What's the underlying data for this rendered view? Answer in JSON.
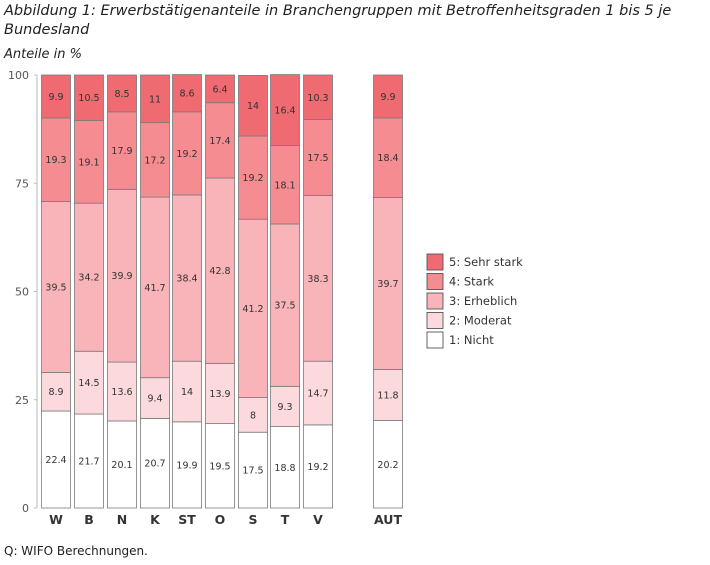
{
  "title": "Abbildung 1: Erwerbstätigenanteile in Branchengruppen mit Betroffenheitsgraden 1 bis 5 je Bundesland",
  "source": "Q: WIFO Berechnungen.",
  "chart_data": {
    "type": "bar",
    "stacked": true,
    "ylabel": "Anteile in %",
    "ylim": [
      0,
      100
    ],
    "yticks": [
      0,
      25,
      50,
      75,
      100
    ],
    "categories": [
      "W",
      "B",
      "N",
      "K",
      "ST",
      "O",
      "S",
      "T",
      "V",
      "AUT"
    ],
    "series": [
      {
        "name": "1: Nicht",
        "color": "#ffffff",
        "values": [
          22.4,
          21.7,
          20.1,
          20.7,
          19.9,
          19.5,
          17.5,
          18.8,
          19.2,
          20.2
        ]
      },
      {
        "name": "2: Moderat",
        "color": "#fbd9dc",
        "values": [
          8.9,
          14.5,
          13.6,
          9.4,
          14,
          13.9,
          8,
          9.3,
          14.7,
          11.8
        ]
      },
      {
        "name": "3: Erheblich",
        "color": "#f8b4b8",
        "values": [
          39.5,
          34.2,
          39.9,
          41.7,
          38.4,
          42.8,
          41.2,
          37.5,
          38.3,
          39.7
        ]
      },
      {
        "name": "4: Stark",
        "color": "#f48c91",
        "values": [
          19.3,
          19.1,
          17.9,
          17.2,
          19.2,
          17.4,
          19.2,
          18.1,
          17.5,
          18.4
        ]
      },
      {
        "name": "5: Sehr stark",
        "color": "#ef6b71",
        "values": [
          9.9,
          10.5,
          8.5,
          11,
          8.6,
          6.4,
          14,
          16.4,
          10.3,
          9.9
        ]
      }
    ],
    "legend_position": "right",
    "grid": false
  }
}
